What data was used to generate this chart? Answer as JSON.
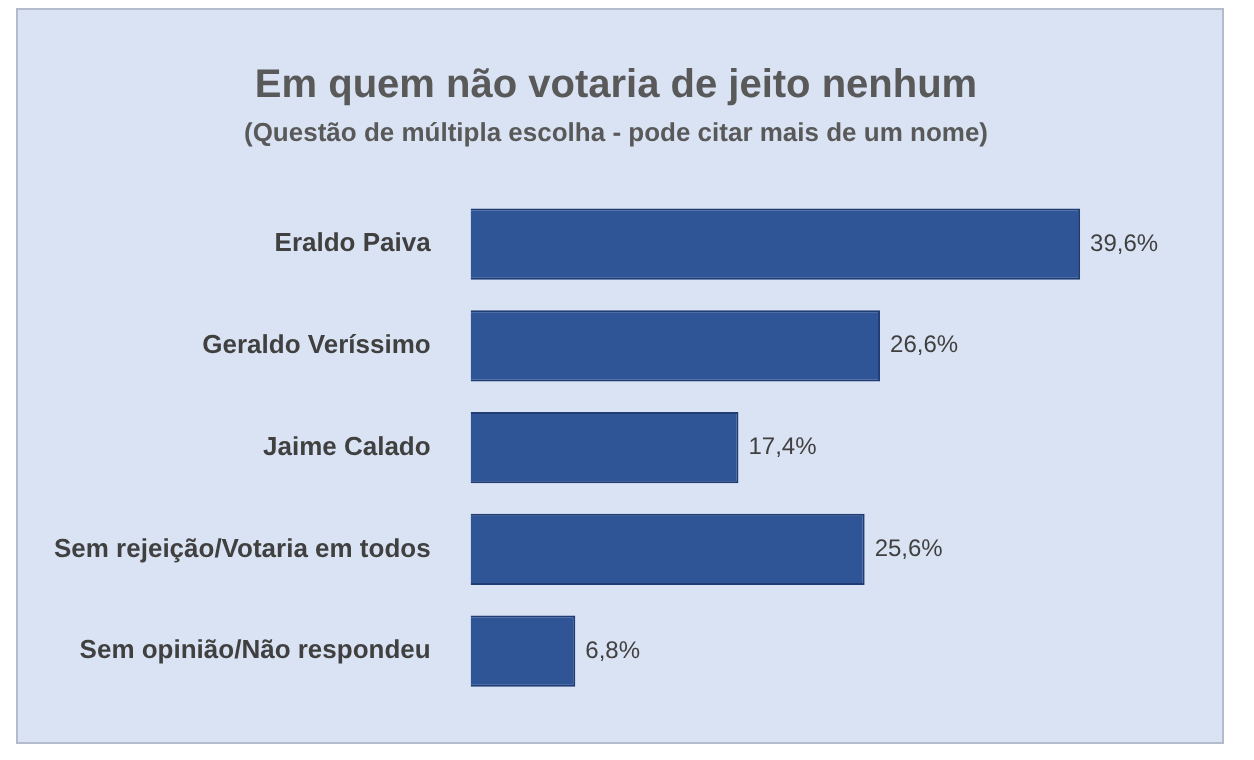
{
  "chart_data": {
    "type": "bar",
    "orientation": "horizontal",
    "title": "Em quem não votaria de jeito nenhum",
    "subtitle": "(Questão de múltipla escolha - pode citar mais de um nome)",
    "categories": [
      "Eraldo Paiva",
      "Geraldo Veríssimo",
      "Jaime Calado",
      "Sem rejeição/Votaria em todos",
      "Sem opinião/Não respondeu"
    ],
    "values": [
      39.6,
      26.6,
      17.4,
      25.6,
      6.8
    ],
    "value_labels": [
      "39,6%",
      "26,6%",
      "17,4%",
      "25,6%",
      "6,8%"
    ],
    "color": "#2f5597",
    "relative": false,
    "grid": false,
    "legend": false
  }
}
